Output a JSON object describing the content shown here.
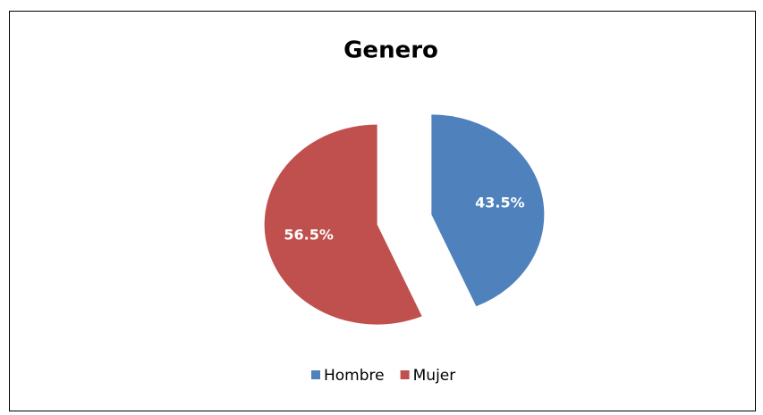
{
  "chart_data": {
    "type": "pie",
    "title": "Genero",
    "categories": [
      "Hombre",
      "Mujer"
    ],
    "values": [
      43.5,
      56.5
    ],
    "value_labels": [
      "43.5%",
      "56.5%"
    ],
    "colors": [
      "#4f81bd",
      "#c0504d"
    ],
    "exploded": true,
    "legend": "bottom"
  }
}
